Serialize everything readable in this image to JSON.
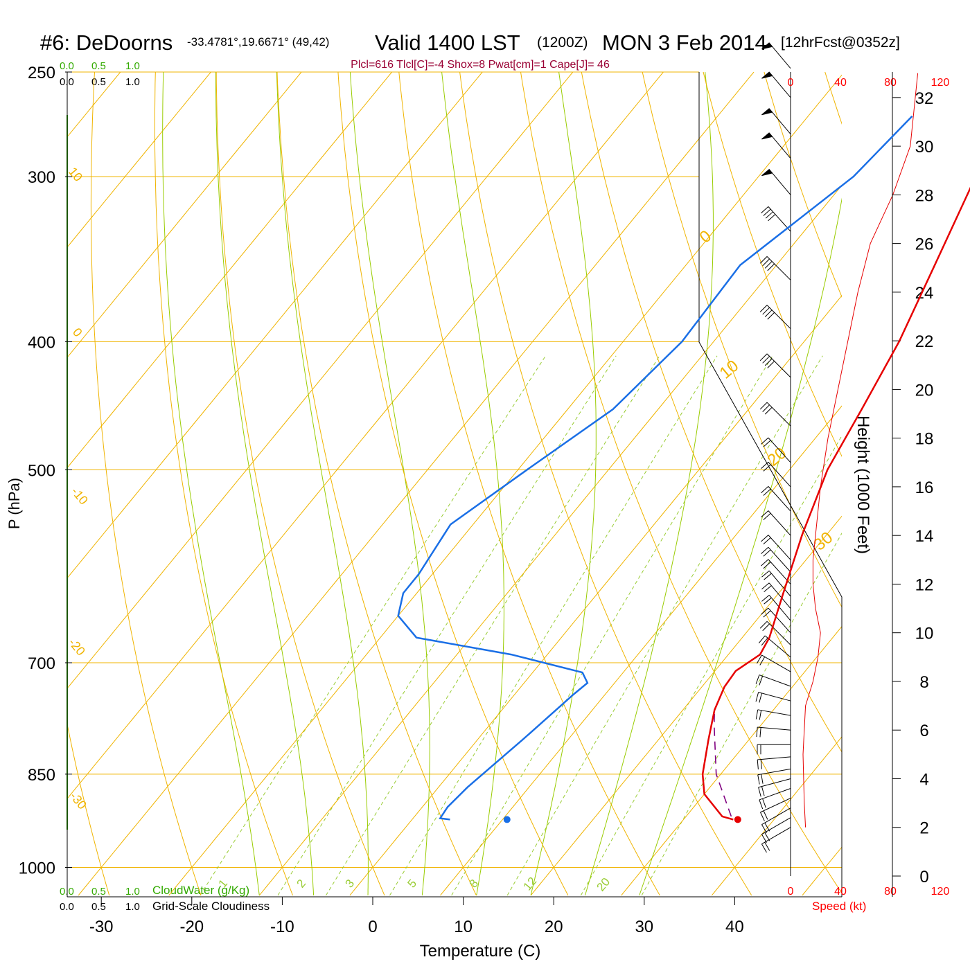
{
  "header": {
    "station": "#6: DeDoorns",
    "coords": "-33.4781°,19.6671° (49,42)",
    "valid": "Valid 1400 LST",
    "utc": "(1200Z)",
    "date": "MON 3 Feb 2014",
    "forecast": "[12hrFcst@0352z]",
    "indices": "Plcl=616 Tlcl[C]=-4 Shox=8 Pwat[cm]=1 Cape[J]= 46"
  },
  "scales": {
    "cloud_top_green": [
      "0.0",
      "0.5",
      "1.0"
    ],
    "cloud_top_black": [
      "0.0",
      "0.5",
      "1.0"
    ],
    "cloud_bottom_green": [
      "0.0",
      "0.5",
      "1.0"
    ],
    "cloud_bottom_black": [
      "0.0",
      "0.5",
      "1.0"
    ],
    "cloudwater_label": "CloudWater (g/Kg)",
    "cloudiness_label": "Grid-Scale Cloudiness",
    "speed_ticks": [
      "0",
      "40",
      "80",
      "120"
    ],
    "speed_label": "Speed (kt)",
    "height_label": "Height (1000 Feet)",
    "height_ticks": [
      "0",
      "2",
      "4",
      "6",
      "8",
      "10",
      "12",
      "14",
      "16",
      "18",
      "20",
      "22",
      "24",
      "26",
      "28",
      "30",
      "32"
    ],
    "isotherm_labels": [
      "10",
      "0",
      "-10",
      "-20",
      "-30",
      "0",
      "10",
      "20",
      "30"
    ],
    "mixing_ratio_labels": [
      "1",
      "2",
      "3",
      "5",
      "8",
      "12",
      "20"
    ]
  },
  "colors": {
    "isotherm": "#f0b400",
    "adiabat": "#99cc00",
    "mixing_ratio": "#99cc33",
    "temperature": "#e60000",
    "dewpoint": "#1a6fe6",
    "parcel": "#800080",
    "title": "#000000",
    "indices": "#990033",
    "green_label": "#33aa00",
    "speed": "#ff0000"
  },
  "chart_data": {
    "type": "skew-t",
    "xlabel": "Temperature (C)",
    "ylabel": "P (hPa)",
    "pressure_ticks": [
      250,
      300,
      400,
      500,
      700,
      850,
      1000
    ],
    "temperature_ticks": [
      -30,
      -20,
      -10,
      0,
      10,
      20,
      30,
      40
    ],
    "temperature_profile": [
      {
        "p": 920,
        "t": 35.5
      },
      {
        "p": 915,
        "t": 34.0
      },
      {
        "p": 880,
        "t": 30.0
      },
      {
        "p": 850,
        "t": 28.0
      },
      {
        "p": 800,
        "t": 25.5
      },
      {
        "p": 760,
        "t": 23.5
      },
      {
        "p": 730,
        "t": 22.5
      },
      {
        "p": 710,
        "t": 22.3
      },
      {
        "p": 690,
        "t": 23.5
      },
      {
        "p": 670,
        "t": 23.0
      },
      {
        "p": 620,
        "t": 20.5
      },
      {
        "p": 560,
        "t": 17.3
      },
      {
        "p": 500,
        "t": 14.2
      },
      {
        "p": 450,
        "t": 12.5
      },
      {
        "p": 400,
        "t": 10.5
      },
      {
        "p": 350,
        "t": 7.5
      },
      {
        "p": 300,
        "t": 4.0
      },
      {
        "p": 270,
        "t": 2.5
      }
    ],
    "dewpoint_profile": [
      {
        "p": 920,
        "t": 4.2
      },
      {
        "p": 918,
        "t": 3.0
      },
      {
        "p": 900,
        "t": 2.8
      },
      {
        "p": 870,
        "t": 3.2
      },
      {
        "p": 800,
        "t": 5.0
      },
      {
        "p": 740,
        "t": 6.5
      },
      {
        "p": 725,
        "t": 7.0
      },
      {
        "p": 712,
        "t": 5.5
      },
      {
        "p": 690,
        "t": -4.0
      },
      {
        "p": 670,
        "t": -16.0
      },
      {
        "p": 645,
        "t": -20.0
      },
      {
        "p": 620,
        "t": -21.5
      },
      {
        "p": 600,
        "t": -21.5
      },
      {
        "p": 550,
        "t": -22.5
      },
      {
        "p": 500,
        "t": -19.0
      },
      {
        "p": 450,
        "t": -15.0
      },
      {
        "p": 400,
        "t": -13.5
      },
      {
        "p": 350,
        "t": -14.0
      },
      {
        "p": 300,
        "t": -9.5
      },
      {
        "p": 270,
        "t": -8.5
      }
    ],
    "parcel_profile": [
      {
        "p": 915,
        "t": 35.0
      },
      {
        "p": 850,
        "t": 29.5
      },
      {
        "p": 780,
        "t": 24.8
      },
      {
        "p": 760,
        "t": 23.5
      }
    ],
    "surface_temperature": 36.0,
    "surface_dewpoint": 10.5,
    "speed_profile": [
      {
        "h": 2,
        "s": 12
      },
      {
        "h": 3,
        "s": 11
      },
      {
        "h": 5,
        "s": 10
      },
      {
        "h": 7,
        "s": 12
      },
      {
        "h": 8,
        "s": 18
      },
      {
        "h": 9,
        "s": 22
      },
      {
        "h": 10,
        "s": 24
      },
      {
        "h": 11,
        "s": 20
      },
      {
        "h": 12,
        "s": 18
      },
      {
        "h": 13,
        "s": 18
      },
      {
        "h": 14,
        "s": 20
      },
      {
        "h": 16,
        "s": 24
      },
      {
        "h": 18,
        "s": 30
      },
      {
        "h": 20,
        "s": 38
      },
      {
        "h": 22,
        "s": 46
      },
      {
        "h": 24,
        "s": 54
      },
      {
        "h": 26,
        "s": 64
      },
      {
        "h": 28,
        "s": 82
      },
      {
        "h": 30,
        "s": 96
      },
      {
        "h": 32,
        "s": 100
      },
      {
        "h": 33,
        "s": 102
      }
    ],
    "wind_barbs": [
      {
        "h": 2.0,
        "dir": 300,
        "spd": 20
      },
      {
        "h": 2.4,
        "dir": 300,
        "spd": 20
      },
      {
        "h": 2.8,
        "dir": 300,
        "spd": 20
      },
      {
        "h": 3.2,
        "dir": 295,
        "spd": 20
      },
      {
        "h": 3.6,
        "dir": 290,
        "spd": 20
      },
      {
        "h": 4.0,
        "dir": 285,
        "spd": 20
      },
      {
        "h": 4.4,
        "dir": 280,
        "spd": 20
      },
      {
        "h": 4.9,
        "dir": 275,
        "spd": 20
      },
      {
        "h": 5.4,
        "dir": 270,
        "spd": 20
      },
      {
        "h": 6.0,
        "dir": 265,
        "spd": 20
      },
      {
        "h": 6.6,
        "dir": 260,
        "spd": 20
      },
      {
        "h": 7.2,
        "dir": 255,
        "spd": 20
      },
      {
        "h": 7.8,
        "dir": 250,
        "spd": 20
      },
      {
        "h": 8.4,
        "dir": 240,
        "spd": 20
      },
      {
        "h": 9.0,
        "dir": 230,
        "spd": 20
      },
      {
        "h": 9.5,
        "dir": 225,
        "spd": 20
      },
      {
        "h": 10.0,
        "dir": 222,
        "spd": 20
      },
      {
        "h": 10.5,
        "dir": 220,
        "spd": 20
      },
      {
        "h": 11.0,
        "dir": 220,
        "spd": 20
      },
      {
        "h": 11.5,
        "dir": 220,
        "spd": 20
      },
      {
        "h": 12.0,
        "dir": 222,
        "spd": 20
      },
      {
        "h": 12.5,
        "dir": 222,
        "spd": 20
      },
      {
        "h": 13.0,
        "dir": 222,
        "spd": 20
      },
      {
        "h": 14.0,
        "dir": 222,
        "spd": 20
      },
      {
        "h": 15.0,
        "dir": 222,
        "spd": 20
      },
      {
        "h": 16.0,
        "dir": 222,
        "spd": 20
      },
      {
        "h": 17.0,
        "dir": 222,
        "spd": 20
      },
      {
        "h": 18.5,
        "dir": 225,
        "spd": 30
      },
      {
        "h": 20.5,
        "dir": 225,
        "spd": 40
      },
      {
        "h": 22.5,
        "dir": 225,
        "spd": 40
      },
      {
        "h": 24.5,
        "dir": 225,
        "spd": 40
      },
      {
        "h": 26.5,
        "dir": 222,
        "spd": 40
      },
      {
        "h": 28.0,
        "dir": 220,
        "spd": 50
      },
      {
        "h": 29.5,
        "dir": 220,
        "spd": 50
      },
      {
        "h": 30.5,
        "dir": 220,
        "spd": 50
      },
      {
        "h": 32.0,
        "dir": 220,
        "spd": 50
      },
      {
        "h": 33.2,
        "dir": 220,
        "spd": 50
      }
    ]
  }
}
